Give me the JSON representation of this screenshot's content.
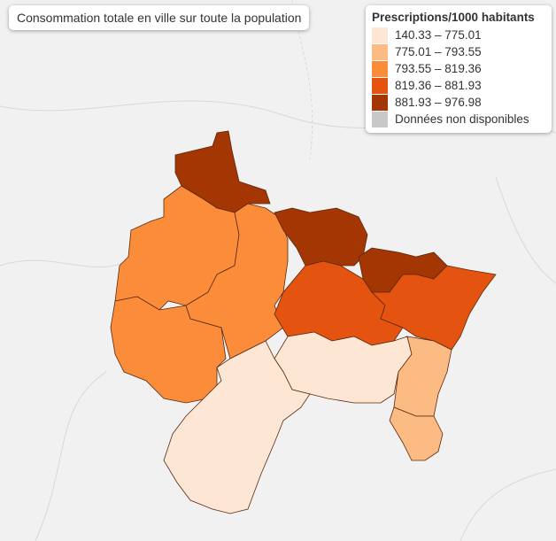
{
  "map_title": "Consommation totale en ville sur toute la population",
  "legend": {
    "title": "Prescriptions/1000 habitants",
    "items": [
      {
        "label": "140.33 – 775.01",
        "color": "#fee6d5"
      },
      {
        "label": "775.01 – 793.55",
        "color": "#fdbb84"
      },
      {
        "label": "793.55 – 819.36",
        "color": "#fb8c3a"
      },
      {
        "label": "819.36 – 881.93",
        "color": "#e4530f"
      },
      {
        "label": "881.93 – 976.98",
        "color": "#a33603"
      },
      {
        "label": "Données non disponibles",
        "color": "#c8c8c8"
      }
    ]
  }
}
